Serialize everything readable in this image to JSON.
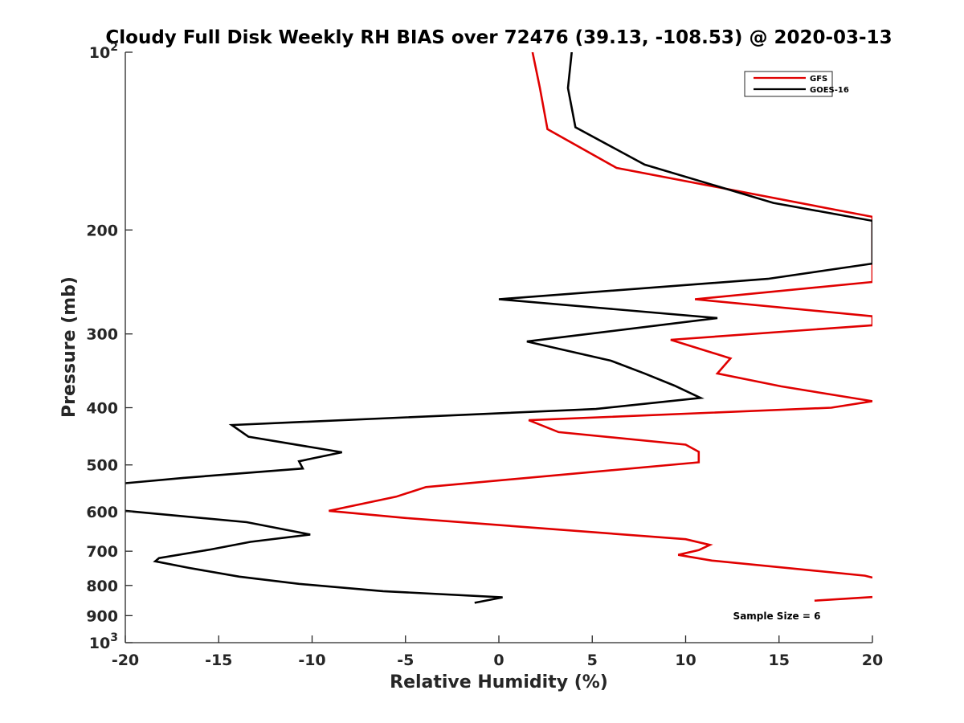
{
  "chart_data": {
    "type": "line",
    "title": "Cloudy Full Disk Weekly RH BIAS over 72476 (39.13, -108.53) @ 2020-03-13",
    "xlabel": "Relative Humidity (%)",
    "ylabel": "Pressure (mb)",
    "xlim": [
      -20,
      20
    ],
    "ylim": [
      100,
      1000
    ],
    "yscale": "log",
    "yreversed": true,
    "x_ticks": [
      "-20",
      "-15",
      "-10",
      "-5",
      "0",
      "5",
      "10",
      "15",
      "20"
    ],
    "y_ticks": [
      {
        "value": 100,
        "base": "10",
        "exp": "2"
      },
      {
        "value": 200,
        "label": "200"
      },
      {
        "value": 300,
        "label": "300"
      },
      {
        "value": 400,
        "label": "400"
      },
      {
        "value": 500,
        "label": "500"
      },
      {
        "value": 600,
        "label": "600"
      },
      {
        "value": 700,
        "label": "700"
      },
      {
        "value": 800,
        "label": "800"
      },
      {
        "value": 900,
        "label": "900"
      },
      {
        "value": 1000,
        "base": "10",
        "exp": "3"
      }
    ],
    "legend_position": "top-right",
    "grid": false,
    "annotation": "Sample Size = 6",
    "series": [
      {
        "name": "GFS",
        "color": "#e00000",
        "points": [
          [
            1.8,
            100
          ],
          [
            2.2,
            115
          ],
          [
            2.6,
            135
          ],
          [
            6.3,
            157
          ],
          [
            20,
            190
          ],
          [
            20,
            245
          ],
          [
            10.5,
            262
          ],
          [
            20,
            280
          ],
          [
            20,
            290
          ],
          [
            9.2,
            307
          ],
          [
            12.4,
            330
          ],
          [
            11.7,
            350
          ],
          [
            15.1,
            368
          ],
          [
            20,
            390
          ],
          [
            17.8,
            400
          ],
          [
            1.6,
            420
          ],
          [
            3.2,
            440
          ],
          [
            10,
            462
          ],
          [
            10.7,
            475
          ],
          [
            10.7,
            495
          ],
          [
            -3.9,
            545
          ],
          [
            -5.5,
            566
          ],
          [
            -9.1,
            598
          ],
          [
            -5,
            615
          ],
          [
            10,
            668
          ],
          [
            11.3,
            683
          ],
          [
            10.7,
            697
          ],
          [
            9.6,
            710
          ],
          [
            11.4,
            726
          ],
          [
            19.6,
            770
          ],
          [
            20,
            776
          ],
          [
            null,
            null
          ],
          [
            20,
            837
          ],
          [
            16.9,
            849
          ]
        ]
      },
      {
        "name": "GOES-16",
        "color": "#000000",
        "points": [
          [
            3.9,
            100
          ],
          [
            3.7,
            115
          ],
          [
            4.1,
            134
          ],
          [
            7.8,
            155
          ],
          [
            14.7,
            180
          ],
          [
            20,
            193
          ],
          [
            20,
            228
          ],
          [
            14.4,
            242
          ],
          [
            0,
            262
          ],
          [
            11.7,
            282
          ],
          [
            1.5,
            309
          ],
          [
            6,
            333
          ],
          [
            7.8,
            350
          ],
          [
            9.4,
            367
          ],
          [
            10.8,
            385
          ],
          [
            5.2,
            402
          ],
          [
            -14.3,
            428
          ],
          [
            -13.4,
            448
          ],
          [
            -8.4,
            476
          ],
          [
            -10.7,
            493
          ],
          [
            -10.5,
            507
          ],
          [
            -16.9,
            526
          ],
          [
            -20,
            537
          ],
          [
            null,
            null
          ],
          [
            -20,
            598
          ],
          [
            -13.5,
            625
          ],
          [
            -10.1,
            656
          ],
          [
            -13.3,
            675
          ],
          [
            -15.4,
            695
          ],
          [
            -18.2,
            719
          ],
          [
            -18.4,
            728
          ],
          [
            -16.6,
            747
          ],
          [
            -13.9,
            773
          ],
          [
            -10.7,
            795
          ],
          [
            -6.2,
            818
          ],
          [
            0.2,
            838
          ],
          [
            -1.3,
            856
          ]
        ]
      }
    ]
  }
}
